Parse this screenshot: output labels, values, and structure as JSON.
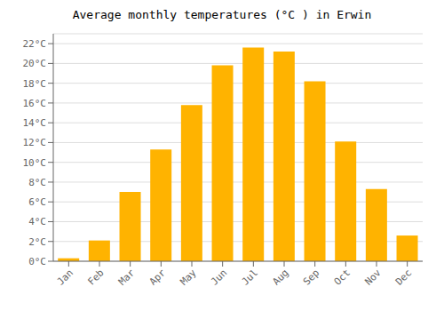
{
  "chart_data": {
    "type": "bar",
    "title": "Average monthly temperatures (°C ) in Erwin",
    "categories": [
      "Jan",
      "Feb",
      "Mar",
      "Apr",
      "May",
      "Jun",
      "Jul",
      "Aug",
      "Sep",
      "Oct",
      "Nov",
      "Dec"
    ],
    "values": [
      0.3,
      2.1,
      7.0,
      11.3,
      15.8,
      19.8,
      21.6,
      21.2,
      18.2,
      12.1,
      7.3,
      2.6
    ],
    "color": "#FFB300",
    "ylim": [
      0,
      23
    ],
    "yticks": [
      {
        "value": 0,
        "label": "0°C"
      },
      {
        "value": 2,
        "label": "2°C"
      },
      {
        "value": 4,
        "label": "4°C"
      },
      {
        "value": 6,
        "label": "6°C"
      },
      {
        "value": 8,
        "label": "8°C"
      },
      {
        "value": 10,
        "label": "10°C"
      },
      {
        "value": 12,
        "label": "12°C"
      },
      {
        "value": 14,
        "label": "14°C"
      },
      {
        "value": 16,
        "label": "16°C"
      },
      {
        "value": 18,
        "label": "18°C"
      },
      {
        "value": 20,
        "label": "20°C"
      },
      {
        "value": 22,
        "label": "22°C"
      }
    ],
    "grid": true
  }
}
